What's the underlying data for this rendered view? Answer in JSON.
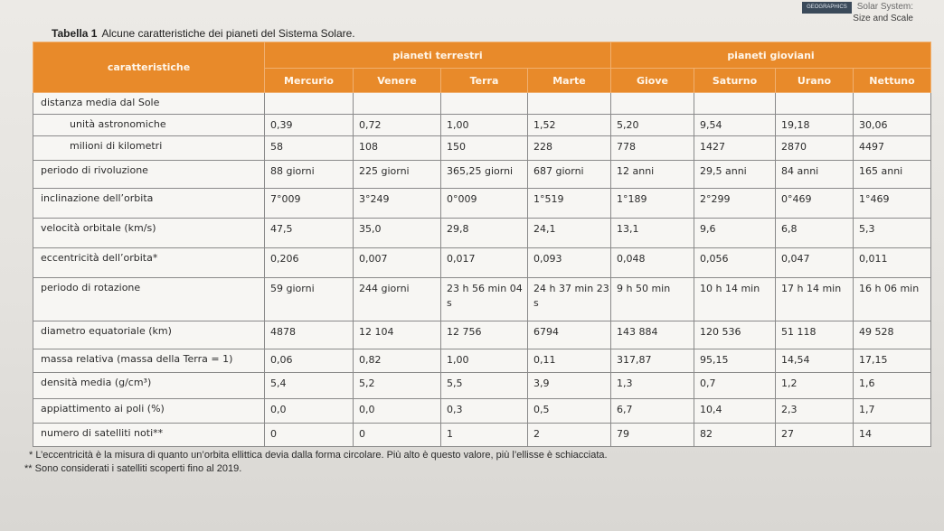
{
  "header": {
    "badge": "GEOGRAPHICS",
    "system": "Solar System:",
    "subtitle": "Size and Scale"
  },
  "title": {
    "label": "Tabella 1",
    "text": "Alcune caratteristiche dei pianeti del Sistema Solare."
  },
  "table": {
    "col_header": "caratteristiche",
    "groups": [
      "pianeti terrestri",
      "pianeti gioviani"
    ],
    "planets": [
      "Mercurio",
      "Venere",
      "Terra",
      "Marte",
      "Giove",
      "Saturno",
      "Urano",
      "Nettuno"
    ],
    "rows": [
      {
        "label": "distanza media dal Sole",
        "values": [
          "",
          "",
          "",
          "",
          "",
          "",
          "",
          ""
        ]
      },
      {
        "label": "unità astronomiche",
        "values": [
          "0,39",
          "0,72",
          "1,00",
          "1,52",
          "5,20",
          "9,54",
          "19,18",
          "30,06"
        ]
      },
      {
        "label": "milioni di kilometri",
        "values": [
          "58",
          "108",
          "150",
          "228",
          "778",
          "1427",
          "2870",
          "4497"
        ]
      },
      {
        "label": "periodo di rivoluzione",
        "values": [
          "88 giorni",
          "225 giorni",
          "365,25 giorni",
          "687 giorni",
          "12 anni",
          "29,5 anni",
          "84 anni",
          "165 anni"
        ]
      },
      {
        "label": "inclinazione dell’orbita",
        "values": [
          "7°009",
          "3°249",
          "0°009",
          "1°519",
          "1°189",
          "2°299",
          "0°469",
          "1°469"
        ]
      },
      {
        "label": "velocità orbitale (km/s)",
        "values": [
          "47,5",
          "35,0",
          "29,8",
          "24,1",
          "13,1",
          "9,6",
          "6,8",
          "5,3"
        ]
      },
      {
        "label": "eccentricità dell’orbita*",
        "values": [
          "0,206",
          "0,007",
          "0,017",
          "0,093",
          "0,048",
          "0,056",
          "0,047",
          "0,011"
        ]
      },
      {
        "label": "periodo di rotazione",
        "values": [
          "59 giorni",
          "244 giorni",
          "23 h 56 min 04 s",
          "24 h 37 min 23 s",
          "9 h 50 min",
          "10 h 14 min",
          "17 h 14 min",
          "16 h 06 min"
        ]
      },
      {
        "label": "diametro equatoriale (km)",
        "values": [
          "4878",
          "12 104",
          "12 756",
          "6794",
          "143 884",
          "120 536",
          "51 118",
          "49 528"
        ]
      },
      {
        "label": "massa relativa (massa della Terra = 1)",
        "values": [
          "0,06",
          "0,82",
          "1,00",
          "0,11",
          "317,87",
          "95,15",
          "14,54",
          "17,15"
        ]
      },
      {
        "label": "densità media (g/cm³)",
        "values": [
          "5,4",
          "5,2",
          "5,5",
          "3,9",
          "1,3",
          "0,7",
          "1,2",
          "1,6"
        ]
      },
      {
        "label": "appiattimento ai poli (%)",
        "values": [
          "0,0",
          "0,0",
          "0,3",
          "0,5",
          "6,7",
          "10,4",
          "2,3",
          "1,7"
        ]
      },
      {
        "label": "numero di satelliti noti**",
        "values": [
          "0",
          "0",
          "1",
          "2",
          "79",
          "82",
          "27",
          "14"
        ]
      }
    ]
  },
  "footnotes": [
    "* L’eccentricità è la misura di quanto un’orbita ellittica devia dalla forma circolare. Più alto è questo valore, più l’ellisse è schiacciata.",
    "** Sono considerati i satelliti scoperti fino al 2019."
  ]
}
